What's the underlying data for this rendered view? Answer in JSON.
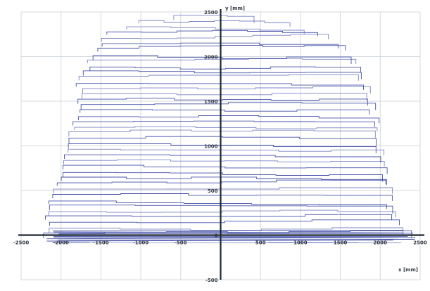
{
  "chart_data": {
    "type": "line",
    "title": "",
    "xlabel": "x [mm]",
    "ylabel": "y [mm]",
    "xlim": [
      -2500,
      2500
    ],
    "ylim": [
      -500,
      2500
    ],
    "x_ticks": [
      -2500,
      -2000,
      -1500,
      -1000,
      -500,
      0,
      500,
      1000,
      1500,
      2000,
      2500
    ],
    "y_ticks": [
      -500,
      0,
      500,
      1000,
      1500,
      2000,
      2500
    ],
    "x_tick_labels": [
      "-2500",
      "-2000",
      "-1500",
      "-1000",
      "-500",
      "0",
      "500",
      "1000",
      "1500",
      "2000",
      "2500"
    ],
    "y_tick_labels": [
      "-500",
      "0",
      "500",
      "1000",
      "1500",
      "2000",
      "2500"
    ],
    "grid": true,
    "series": [
      {
        "style": "stepped scan traces",
        "color": "#4450a8",
        "envelope": {
          "y": [
            0,
            250,
            500,
            750,
            1000,
            1250,
            1500,
            1750,
            2000,
            2250,
            2400,
            2500
          ],
          "x_left": [
            -2200,
            -2150,
            -2100,
            -2000,
            -1900,
            -1850,
            -1800,
            -1750,
            -1650,
            -1450,
            -1000,
            -400
          ],
          "x_right": [
            2400,
            2150,
            2100,
            2050,
            2000,
            1950,
            1900,
            1800,
            1650,
            1350,
            900,
            100
          ]
        },
        "row_spacing": 62.5
      }
    ],
    "colors": {
      "trace": "#4450a8",
      "trace_light": "#7c84c4",
      "axis": "#1c2733",
      "grid": "#d4d9de"
    }
  }
}
